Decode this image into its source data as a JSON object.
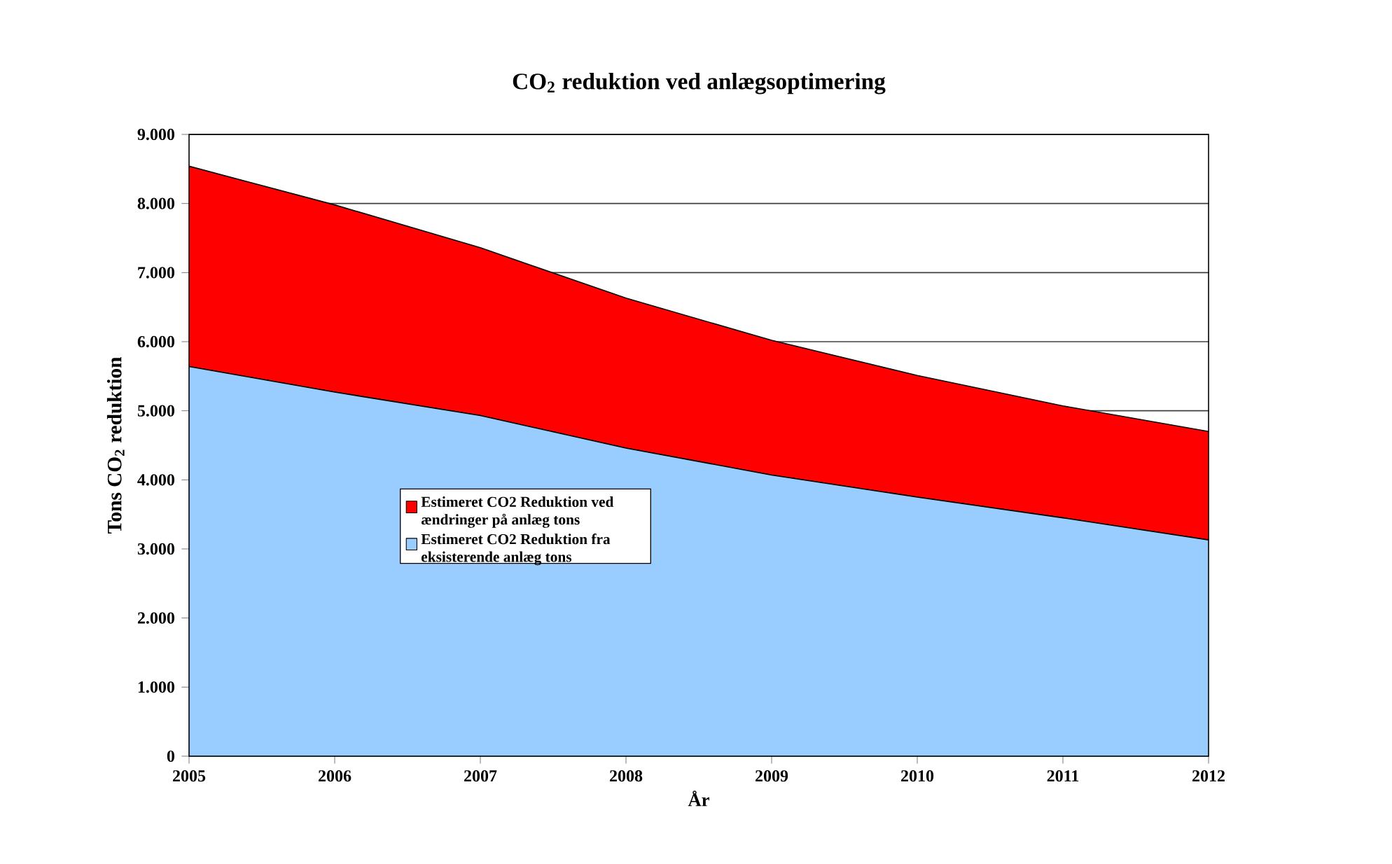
{
  "chart_data": {
    "type": "area",
    "title": "CO$_{2}$ reduktion ved anlægsoptimering",
    "xlabel": "År",
    "ylabel": "Tons CO$_{2}$ reduktion",
    "categories": [
      "2005",
      "2006",
      "2007",
      "2008",
      "2009",
      "2010",
      "2011",
      "2012"
    ],
    "stacked": true,
    "series": [
      {
        "name": "Estimeret CO2 Reduktion fra eksisterende anlæg tons",
        "color": "#99ccff",
        "values": [
          5640,
          5270,
          4930,
          4460,
          4070,
          3750,
          3450,
          3130
        ]
      },
      {
        "name": "Estimeret CO2 Reduktion ved ændringer på anlæg tons",
        "color": "#ff0000",
        "values": [
          2900,
          2710,
          2430,
          2170,
          1950,
          1760,
          1620,
          1570
        ]
      }
    ],
    "ylim": [
      0,
      9000
    ],
    "yticks": [
      {
        "value": 0,
        "label": "0"
      },
      {
        "value": 1000,
        "label": "1.000"
      },
      {
        "value": 2000,
        "label": "2.000"
      },
      {
        "value": 3000,
        "label": "3.000"
      },
      {
        "value": 4000,
        "label": "4.000"
      },
      {
        "value": 5000,
        "label": "5.000"
      },
      {
        "value": 6000,
        "label": "6.000"
      },
      {
        "value": 7000,
        "label": "7.000"
      },
      {
        "value": 8000,
        "label": "8.000"
      },
      {
        "value": 9000,
        "label": "9.000"
      }
    ],
    "grid": "y",
    "legend": "center left"
  }
}
